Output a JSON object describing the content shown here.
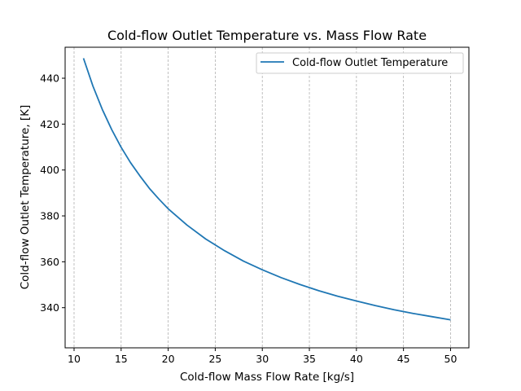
{
  "chart_data": {
    "type": "line",
    "title": "Cold-flow Outlet Temperature vs. Mass Flow Rate",
    "xlabel": "Cold-flow Mass Flow Rate [kg/s]",
    "ylabel": "Cold-flow Outlet Temperature, [K]",
    "xlim": [
      9.05,
      51.95
    ],
    "ylim": [
      322.5,
      453.5
    ],
    "x_ticks": [
      10,
      15,
      20,
      25,
      30,
      35,
      40,
      45,
      50
    ],
    "y_ticks": [
      340,
      360,
      380,
      400,
      420,
      440
    ],
    "grid": "x-axis only, dashed",
    "legend_position": "top-right",
    "series": [
      {
        "name": "Cold-flow Outlet Temperature",
        "color": "#1f77b4",
        "x": [
          11,
          12,
          13,
          14,
          15,
          16,
          17,
          18,
          19,
          20,
          22,
          24,
          26,
          28,
          30,
          32,
          34,
          36,
          38,
          40,
          42,
          44,
          46,
          48,
          50
        ],
        "y": [
          448.7,
          436.6,
          426.4,
          417.6,
          409.9,
          403.2,
          397.4,
          392.0,
          387.4,
          383.1,
          376.0,
          369.9,
          364.8,
          360.3,
          356.5,
          353.1,
          350.1,
          347.4,
          345.0,
          342.9,
          340.9,
          339.1,
          337.5,
          336.1,
          334.7
        ]
      }
    ]
  }
}
